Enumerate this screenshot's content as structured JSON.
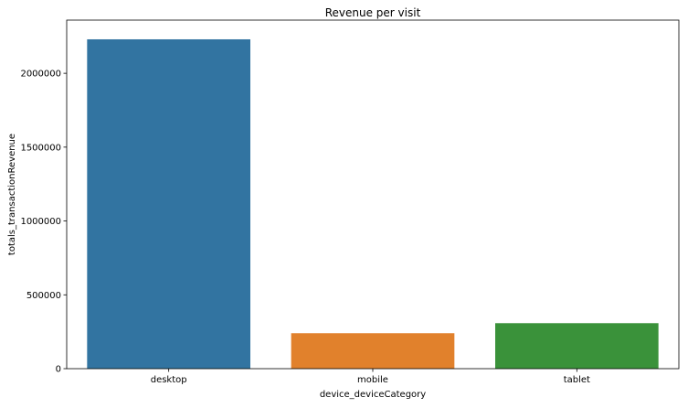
{
  "chart_data": {
    "type": "bar",
    "title": "Revenue per visit",
    "xlabel": "device_deviceCategory",
    "ylabel": "totals_transactionRevenue",
    "categories": [
      "desktop",
      "mobile",
      "tablet"
    ],
    "values": [
      2230000,
      240000,
      308000
    ],
    "colors": [
      "#3274a1",
      "#e1812c",
      "#3a923a"
    ],
    "ylim": [
      0,
      2360000
    ],
    "yticks": [
      0,
      500000,
      1000000,
      1500000,
      2000000
    ],
    "ytick_labels": [
      "0",
      "500000",
      "1000000",
      "1500000",
      "2000000"
    ],
    "grid": false,
    "legend": "none"
  }
}
